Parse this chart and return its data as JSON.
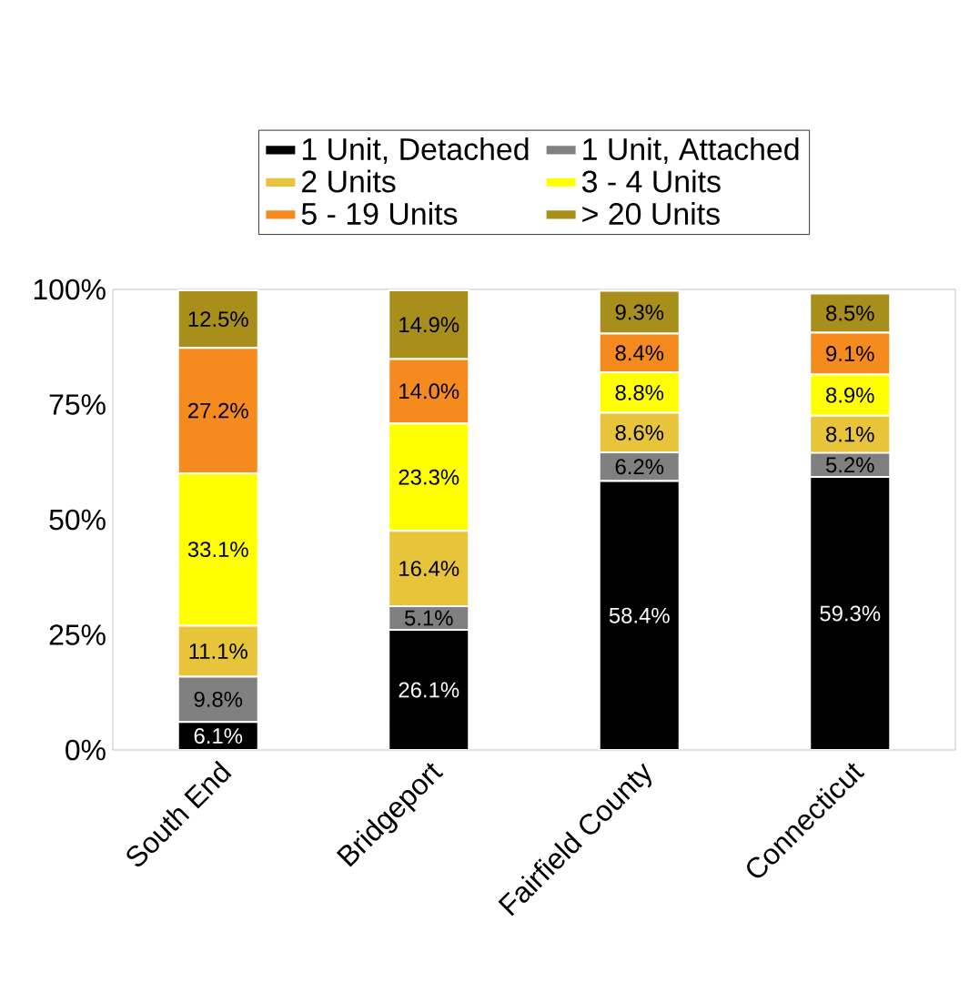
{
  "chart_data": {
    "type": "bar",
    "stacked": true,
    "categories": [
      "South End",
      "Bridgeport",
      "Fairfield County",
      "Connecticut"
    ],
    "ylim": [
      0,
      100
    ],
    "yticks": [
      {
        "value": 0,
        "label": "0%"
      },
      {
        "value": 25,
        "label": "25%"
      },
      {
        "value": 50,
        "label": "50%"
      },
      {
        "value": 75,
        "label": "75%"
      },
      {
        "value": 100,
        "label": "100%"
      }
    ],
    "legend": "top",
    "series": [
      {
        "name": "1 Unit, Detached",
        "color": "#000000",
        "values": [
          6.1,
          26.1,
          58.4,
          59.3
        ],
        "value_labels": [
          "6.1%",
          "26.1%",
          "58.4%",
          "59.3%"
        ]
      },
      {
        "name": "1 Unit, Attached",
        "color": "#808080",
        "values": [
          9.8,
          5.1,
          6.2,
          5.2
        ],
        "value_labels": [
          "9.8%",
          "5.1%",
          "6.2%",
          "5.2%"
        ]
      },
      {
        "name": "2 Units",
        "color": "#e8c43a",
        "values": [
          11.1,
          16.4,
          8.6,
          8.1
        ],
        "value_labels": [
          "11.1%",
          "16.4%",
          "8.6%",
          "8.1%"
        ]
      },
      {
        "name": "3 - 4 Units",
        "color": "#ffff00",
        "values": [
          33.1,
          23.3,
          8.8,
          8.9
        ],
        "value_labels": [
          "33.1%",
          "23.3%",
          "8.8%",
          "8.9%"
        ]
      },
      {
        "name": "5 - 19 Units",
        "color": "#f58a1f",
        "values": [
          27.2,
          14.0,
          8.4,
          9.1
        ],
        "value_labels": [
          "27.2%",
          "14.0%",
          "8.4%",
          "9.1%"
        ]
      },
      {
        "name": "> 20 Units",
        "color": "#a88f1c",
        "values": [
          12.5,
          14.9,
          9.3,
          8.5
        ],
        "value_labels": [
          "12.5%",
          "14.9%",
          "9.3%",
          "8.5%"
        ]
      }
    ]
  }
}
